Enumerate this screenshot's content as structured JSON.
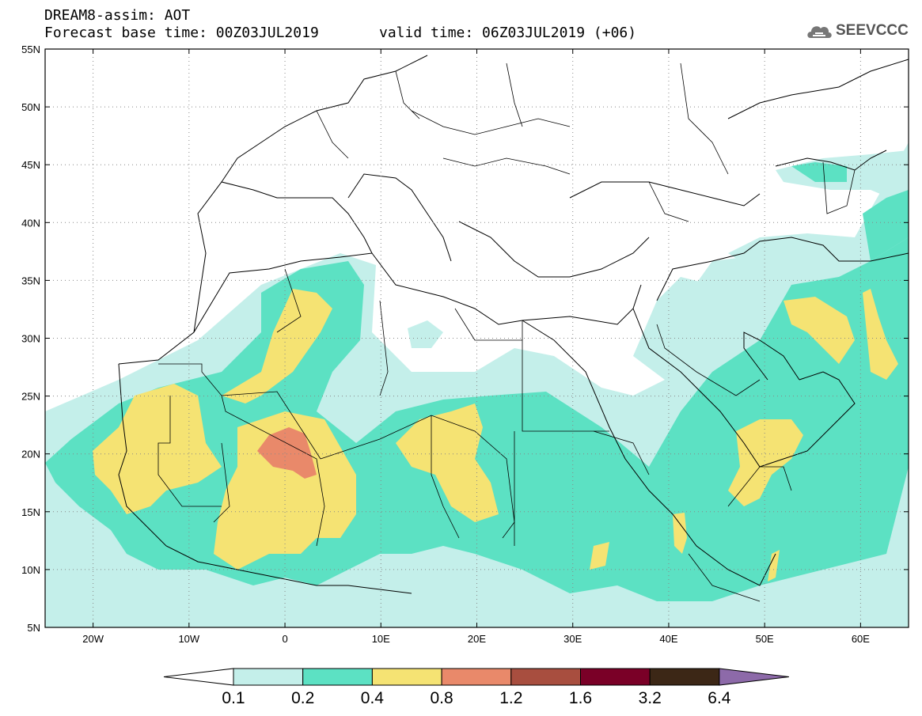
{
  "header": {
    "title": "DREAM8-assim: AOT",
    "base_time_label": "Forecast base time: 00Z03JUL2019",
    "valid_time_label": "valid time: 06Z03JUL2019 (+06)",
    "logo_text": "SEEVCCC",
    "logo_icon": "cloud-icon"
  },
  "map": {
    "lon_range": [
      -25,
      65
    ],
    "lat_range": [
      5,
      55
    ],
    "lon_ticks": [
      {
        "value": -20,
        "label": "20W"
      },
      {
        "value": -10,
        "label": "10W"
      },
      {
        "value": 0,
        "label": "0"
      },
      {
        "value": 10,
        "label": "10E"
      },
      {
        "value": 20,
        "label": "20E"
      },
      {
        "value": 30,
        "label": "30E"
      },
      {
        "value": 40,
        "label": "40E"
      },
      {
        "value": 50,
        "label": "50E"
      },
      {
        "value": 60,
        "label": "60E"
      }
    ],
    "lat_ticks": [
      {
        "value": 5,
        "label": "5N"
      },
      {
        "value": 10,
        "label": "10N"
      },
      {
        "value": 15,
        "label": "15N"
      },
      {
        "value": 20,
        "label": "20N"
      },
      {
        "value": 25,
        "label": "25N"
      },
      {
        "value": 30,
        "label": "30N"
      },
      {
        "value": 35,
        "label": "35N"
      },
      {
        "value": 40,
        "label": "40N"
      },
      {
        "value": 45,
        "label": "45N"
      },
      {
        "value": 50,
        "label": "50N"
      },
      {
        "value": 55,
        "label": "55N"
      }
    ],
    "gridlines": "dotted"
  },
  "colorbar": {
    "levels": [
      "0.1",
      "0.2",
      "0.4",
      "0.8",
      "1.2",
      "1.6",
      "3.2",
      "6.4"
    ],
    "colors": [
      "#ffffff",
      "#c4efea",
      "#5ce1c3",
      "#f5e373",
      "#e9896a",
      "#a84e3f",
      "#7a0027",
      "#3c2716",
      "#8d6aa9"
    ]
  }
}
